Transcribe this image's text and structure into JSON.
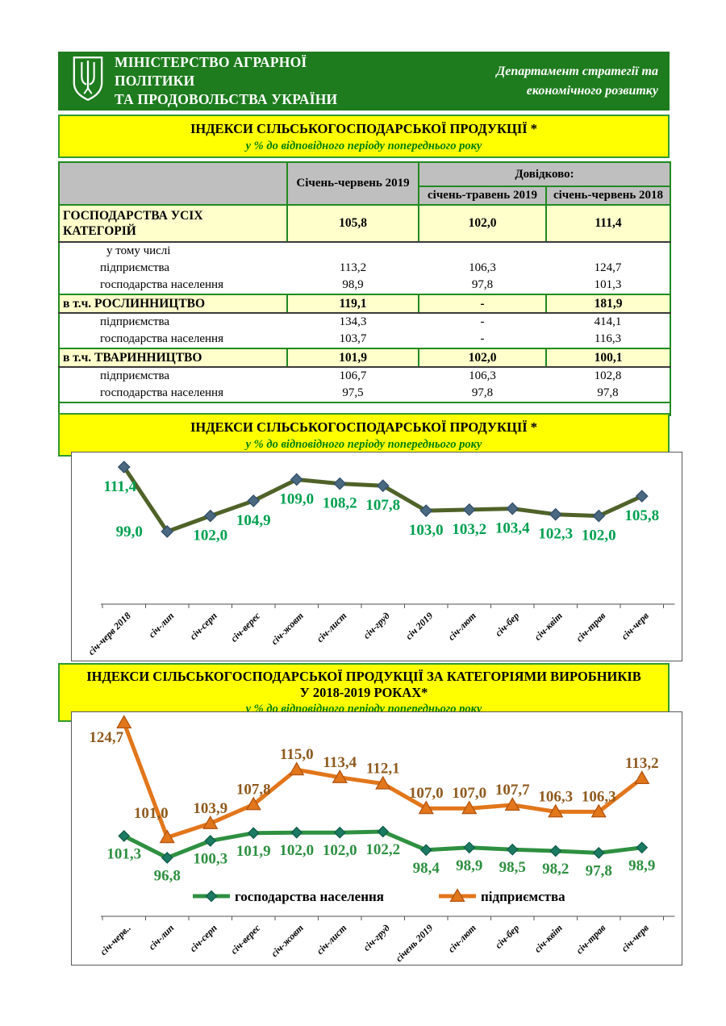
{
  "header": {
    "ministry_line1": "МІНІСТЕРСТВО АГРАРНОЇ",
    "ministry_line2": "ПОЛІТИКИ",
    "ministry_line3": "ТА ПРОДОВОЛЬСТВА УКРАЇНИ",
    "department_line1": "Департамент стратегії та",
    "department_line2": "економічного розвитку"
  },
  "section1": {
    "title": "ІНДЕКСИ СІЛЬСЬКОГОСПОДАРСЬКОЇ ПРОДУКЦІЇ *",
    "subtitle": "у % до відповідного періоду попереднього року"
  },
  "section2": {
    "title": "ІНДЕКСИ СІЛЬСЬКОГОСПОДАРСЬКОЇ ПРОДУКЦІЇ *",
    "subtitle": "у % до відповідного періоду попереднього року"
  },
  "section3": {
    "title_line1": "ІНДЕКСИ  СІЛЬСЬКОГОСПОДАРСЬКОЇ ПРОДУКЦІЇ ЗА КАТЕГОРІЯМИ ВИРОБНИКІВ",
    "title_line2": "У 2018-2019 РОКАХ*",
    "subtitle": "у % до відповідного періоду попереднього року"
  },
  "colors": {
    "header_green": "#1e7c1e",
    "title_yellow": "#ffff00",
    "subtitle_green": "#007d00",
    "table_border_green": "#1f8a1f",
    "table_header_gray": "#bfbfbf",
    "section_row_cream": "#ffffcc",
    "chart1_line": "#4f6228",
    "chart1_marker": "#4a6880",
    "chart1_labels": "#00a050",
    "households_green": "#2e9041",
    "households_marker": "#1b7a62",
    "enterprises_orange": "#e2761b",
    "enterprises_label_brown": "#8e5a1e"
  },
  "chart_data": [
    {
      "type": "table",
      "title": "ІНДЕКСИ СІЛЬСЬКОГОСПОДАРСЬКОЇ ПРОДУКЦІЇ *",
      "subtitle": "у % до відповідного періоду попереднього року",
      "reference_label": "Довідково:",
      "columns": [
        "",
        "Січень-червень 2019",
        "січень-травень  2019",
        "січень-червень 2018"
      ],
      "rows": [
        {
          "label": "ГОСПОДАРСТВА УСІХ КАТЕГОРІЙ",
          "type": "main",
          "values": [
            "105,8",
            "102,0",
            "111,4"
          ]
        },
        {
          "label": "у тому числі",
          "type": "note",
          "values": [
            "",
            "",
            ""
          ]
        },
        {
          "label": "підприємства",
          "type": "sub",
          "values": [
            "113,2",
            "106,3",
            "124,7"
          ]
        },
        {
          "label": "господарства населення",
          "type": "sub",
          "values": [
            "98,9",
            "97,8",
            "101,3"
          ]
        },
        {
          "label": "в т.ч. РОСЛИННИЦТВО",
          "type": "section",
          "values": [
            "119,1",
            "-",
            "181,9"
          ]
        },
        {
          "label": "підприємства",
          "type": "sub",
          "values": [
            "134,3",
            "-",
            "414,1"
          ]
        },
        {
          "label": "господарства населення",
          "type": "sub",
          "values": [
            "103,7",
            "-",
            "116,3"
          ]
        },
        {
          "label": "в т.ч. ТВАРИННИЦТВО",
          "type": "section",
          "values": [
            "101,9",
            "102,0",
            "100,1"
          ]
        },
        {
          "label": "підприємства",
          "type": "sub",
          "values": [
            "106,7",
            "106,3",
            "102,8"
          ]
        },
        {
          "label": "господарства населення",
          "type": "sub",
          "values": [
            "97,5",
            "97,8",
            "97,8"
          ]
        }
      ]
    },
    {
      "type": "line",
      "title": "ІНДЕКСИ СІЛЬСЬКОГОСПОДАРСЬКОЇ ПРОДУКЦІЇ *",
      "subtitle": "у % до відповідного періоду попереднього року",
      "categories": [
        "січ-черв 2018",
        "січ-лип",
        "січ-серп",
        "січ-верес",
        "січ-жовт",
        "січ-лист",
        "січ-груд",
        "січ 2019",
        "січ-лют",
        "січ-бер",
        "січ-квіт",
        "січ-трав",
        "січ-черв"
      ],
      "series": [
        {
          "values": [
            111.4,
            99.0,
            102.0,
            104.9,
            109.0,
            108.2,
            107.8,
            103.0,
            103.2,
            103.4,
            102.3,
            102.0,
            105.8
          ]
        }
      ],
      "ylim": [
        85,
        114
      ],
      "grid": false,
      "legend": false,
      "xlabel": "",
      "ylabel": ""
    },
    {
      "type": "line",
      "title": "ІНДЕКСИ  СІЛЬСЬКОГОСПОДАРСЬКОЇ ПРОДУКЦІЇ ЗА КАТЕГОРІЯМИ ВИРОБНИКІВ У 2018-2019 РОКАХ*",
      "subtitle": "у % до відповідного періоду попереднього року",
      "categories": [
        "січ-черв..",
        "січ-лип",
        "січ-серп",
        "січ-верес",
        "січ-жовт",
        "січ-лист",
        "січ-груд",
        "січень 2019",
        "січ-лют",
        "січ-бер",
        "січ-квіт",
        "січ-трав",
        "січ-черв"
      ],
      "series": [
        {
          "name": "господарства населення",
          "values": [
            101.3,
            96.8,
            100.3,
            101.9,
            102.0,
            102.0,
            102.2,
            98.4,
            98.9,
            98.5,
            98.2,
            97.8,
            98.9
          ]
        },
        {
          "name": "підприємства",
          "values": [
            124.7,
            101.0,
            103.9,
            107.8,
            115.0,
            113.4,
            112.1,
            107.0,
            107.0,
            107.7,
            106.3,
            106.3,
            113.2
          ]
        }
      ],
      "ylim": [
        81,
        126
      ],
      "grid": false,
      "legend": true,
      "legend_position": "bottom",
      "xlabel": "",
      "ylabel": ""
    }
  ]
}
